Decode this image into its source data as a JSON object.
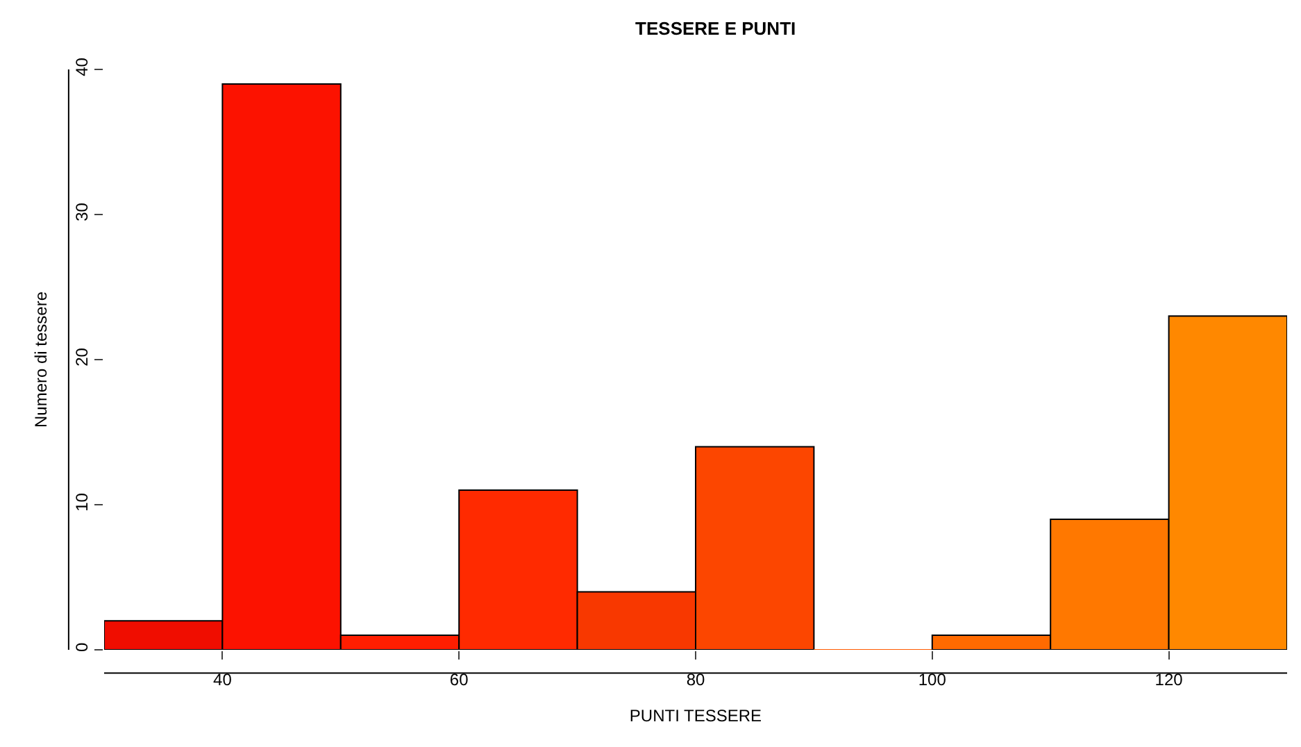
{
  "chart_data": {
    "type": "histogram",
    "title": "TESSERE E PUNTI",
    "xlabel": "PUNTI TESSERE",
    "ylabel": "Numero di tessere",
    "bins": [
      30,
      40,
      50,
      60,
      70,
      80,
      90,
      100,
      110,
      120,
      130
    ],
    "values": [
      2,
      39,
      1,
      11,
      4,
      14,
      0,
      1,
      9,
      23
    ],
    "colors": [
      "#f00d00",
      "#fc1200",
      "#ff1e00",
      "#ff2a00",
      "#f83800",
      "#fc4600",
      "#ff5a00",
      "#ff6a00",
      "#ff7800",
      "#ff8800"
    ],
    "xlim": [
      30,
      130
    ],
    "ylim": [
      0,
      40
    ],
    "xticks": [
      40,
      60,
      80,
      100,
      120
    ],
    "yticks": [
      0,
      10,
      20,
      30,
      40
    ],
    "legend": false
  }
}
